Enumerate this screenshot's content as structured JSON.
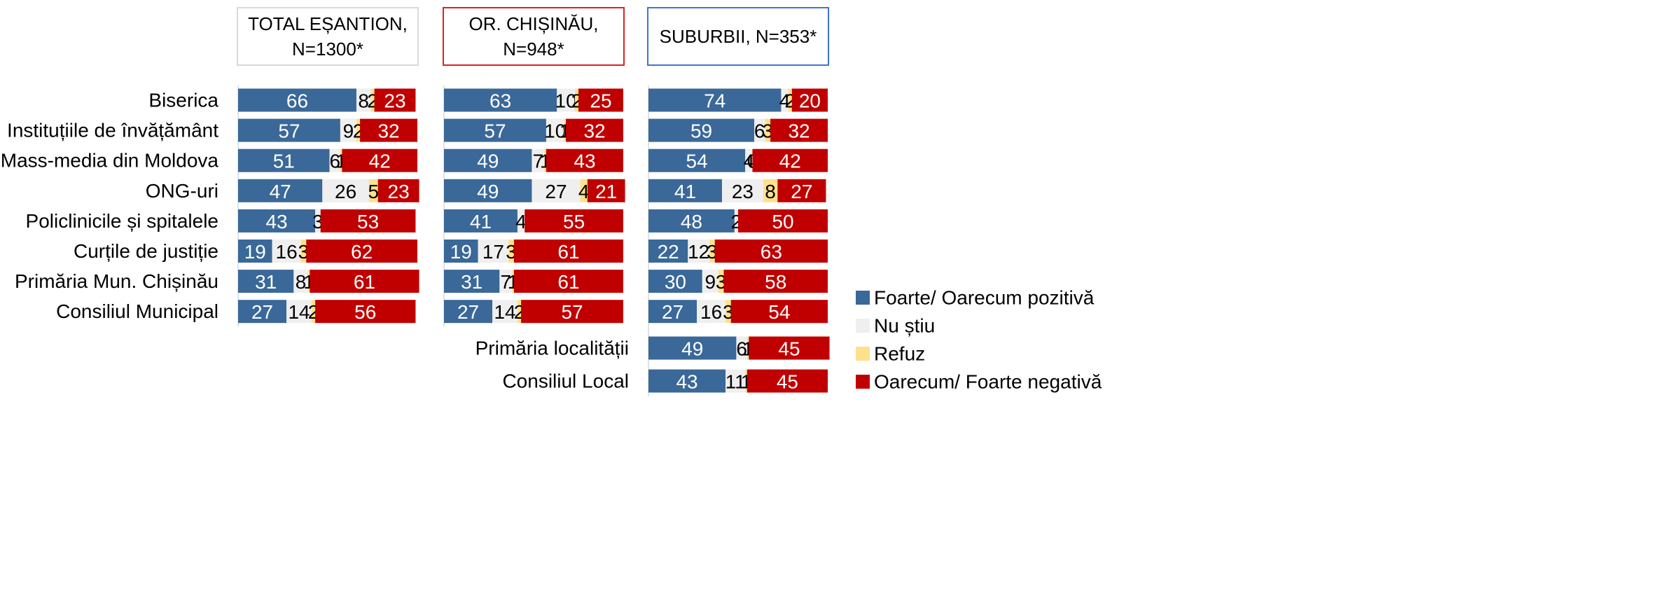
{
  "chart_data": [
    {
      "type": "stacked_barh",
      "title": "TOTAL EȘANTION, N=1300*",
      "border_color": "#d9d9d9",
      "xlim": [
        0,
        100
      ],
      "categories": [
        "Biserica",
        "Instituțiile de învățământ",
        "Mass-media din Moldova",
        "ONG-uri",
        "Policlinicile și spitalele",
        "Curțile de justiție",
        "Primăria Mun. Chișinău",
        "Consiliul Municipal"
      ],
      "series": [
        {
          "name": "Foarte/ Oarecum pozitivă",
          "color": "#3a6898",
          "values": [
            66,
            57,
            51,
            47,
            43,
            19,
            31,
            27
          ]
        },
        {
          "name": "Nu știu",
          "color": "#efefef",
          "values": [
            8,
            9,
            6,
            26,
            3,
            16,
            8,
            14
          ]
        },
        {
          "name": "Refuz",
          "color": "#fde18b",
          "values": [
            2,
            2,
            1,
            5,
            null,
            3,
            1,
            2
          ]
        },
        {
          "name": "Oarecum/ Foarte negativă",
          "color": "#c00000",
          "values": [
            23,
            32,
            42,
            23,
            53,
            62,
            61,
            56
          ]
        }
      ]
    },
    {
      "type": "stacked_barh",
      "title": "OR. CHIȘINĂU, N=948*",
      "border_color": "#e0201e",
      "xlim": [
        0,
        100
      ],
      "categories": [
        null,
        null,
        null,
        null,
        null,
        null,
        null,
        null
      ],
      "series": [
        {
          "color": "#3a6898",
          "values": [
            63,
            57,
            49,
            49,
            41,
            19,
            31,
            27
          ]
        },
        {
          "color": "#efefef",
          "values": [
            10,
            10,
            7,
            27,
            4,
            17,
            7,
            14
          ]
        },
        {
          "color": "#fde18b",
          "values": [
            2,
            1,
            1,
            4,
            null,
            3,
            1,
            2
          ]
        },
        {
          "color": "#c00000",
          "values": [
            25,
            32,
            43,
            21,
            55,
            61,
            61,
            57
          ]
        }
      ]
    },
    {
      "type": "stacked_barh",
      "title": "SUBURBII, N=353*",
      "border_color": "#3f74d8",
      "xlim": [
        0,
        100
      ],
      "categories": [
        null,
        null,
        null,
        null,
        null,
        null,
        null,
        null,
        "Primăria localității",
        "Consiliul Local"
      ],
      "series": [
        {
          "color": "#3a6898",
          "values": [
            74,
            59,
            54,
            41,
            48,
            22,
            30,
            27,
            49,
            43
          ]
        },
        {
          "color": "#efefef",
          "values": [
            4,
            6,
            4,
            23,
            2,
            12,
            9,
            16,
            6,
            11
          ]
        },
        {
          "color": "#fde18b",
          "values": [
            2,
            3,
            0,
            8,
            null,
            3,
            3,
            3,
            1,
            1
          ]
        },
        {
          "color": "#c00000",
          "values": [
            20,
            32,
            42,
            27,
            50,
            63,
            58,
            54,
            45,
            45
          ]
        }
      ]
    }
  ]
}
